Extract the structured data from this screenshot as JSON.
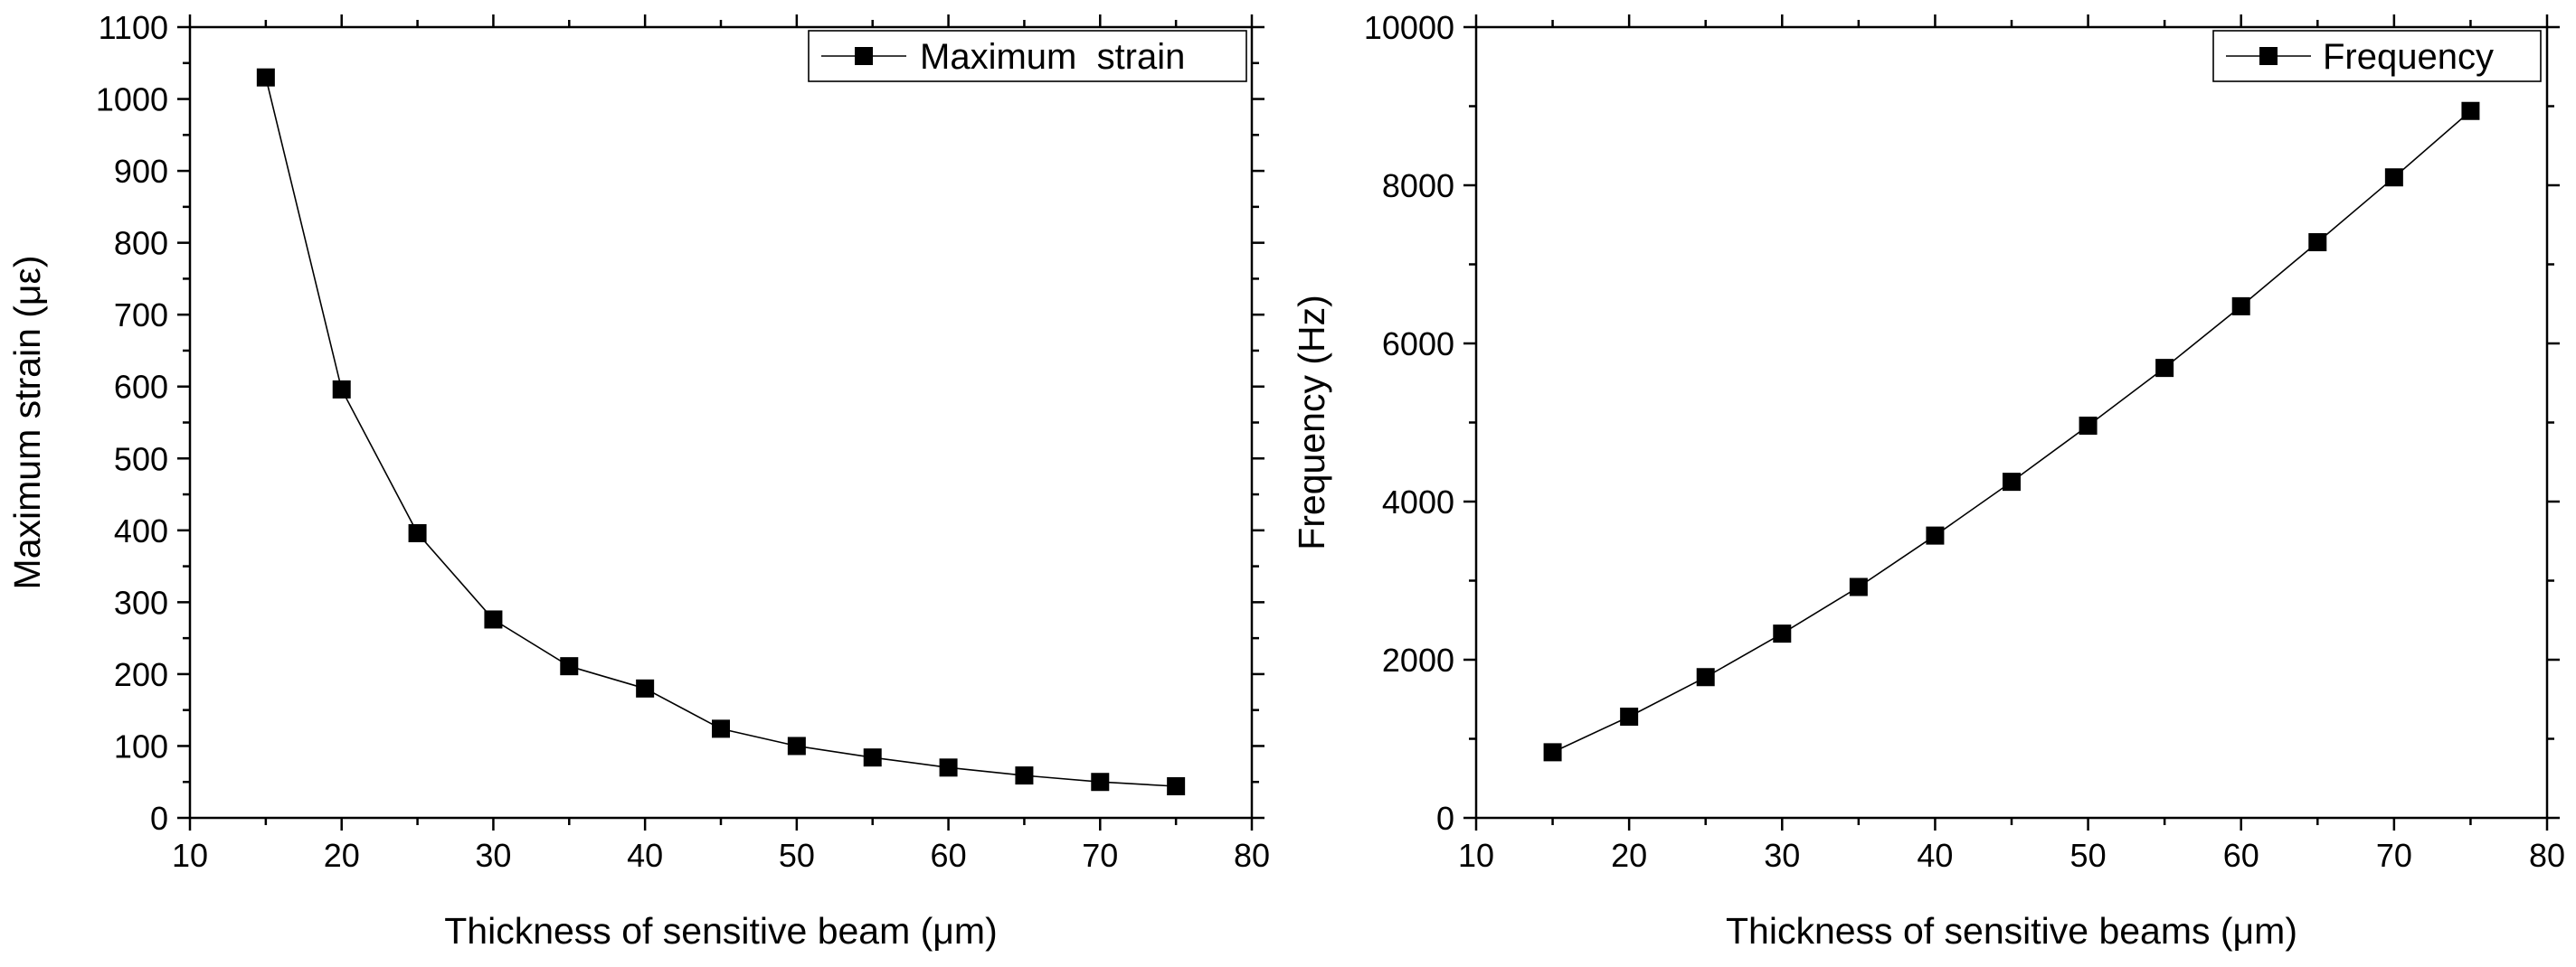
{
  "chart_data": [
    {
      "type": "line",
      "title": "",
      "xlabel": "Thickness of sensitive beam (μm)",
      "ylabel": "Maximum  strain (με)",
      "xlim": [
        10,
        80
      ],
      "ylim": [
        0,
        1100
      ],
      "x_major_ticks": [
        10,
        20,
        30,
        40,
        50,
        60,
        70,
        80
      ],
      "y_major_ticks": [
        0,
        100,
        200,
        300,
        400,
        500,
        600,
        700,
        800,
        900,
        1000,
        1100
      ],
      "legend_position": "top-right",
      "series": [
        {
          "name": "Maximum  strain",
          "marker": "square",
          "x": [
            15,
            20,
            25,
            30,
            35,
            40,
            45,
            50,
            55,
            60,
            65,
            70,
            75
          ],
          "y": [
            1030,
            596,
            396,
            276,
            211,
            180,
            124,
            100,
            84,
            70,
            59,
            50,
            44
          ]
        }
      ]
    },
    {
      "type": "line",
      "title": "",
      "xlabel": "Thickness of sensitive beams (μm)",
      "ylabel": "Frequency (Hz)",
      "xlim": [
        10,
        80
      ],
      "ylim": [
        0,
        10000
      ],
      "x_major_ticks": [
        10,
        20,
        30,
        40,
        50,
        60,
        70,
        80
      ],
      "y_major_ticks": [
        0,
        2000,
        4000,
        6000,
        8000,
        10000
      ],
      "legend_position": "top-right",
      "series": [
        {
          "name": "Frequency",
          "marker": "square",
          "x": [
            15,
            20,
            25,
            30,
            35,
            40,
            45,
            50,
            55,
            60,
            65,
            70,
            75
          ],
          "y": [
            830,
            1280,
            1780,
            2330,
            2920,
            3570,
            4250,
            4960,
            5690,
            6470,
            7280,
            8100,
            8940
          ]
        }
      ]
    }
  ]
}
